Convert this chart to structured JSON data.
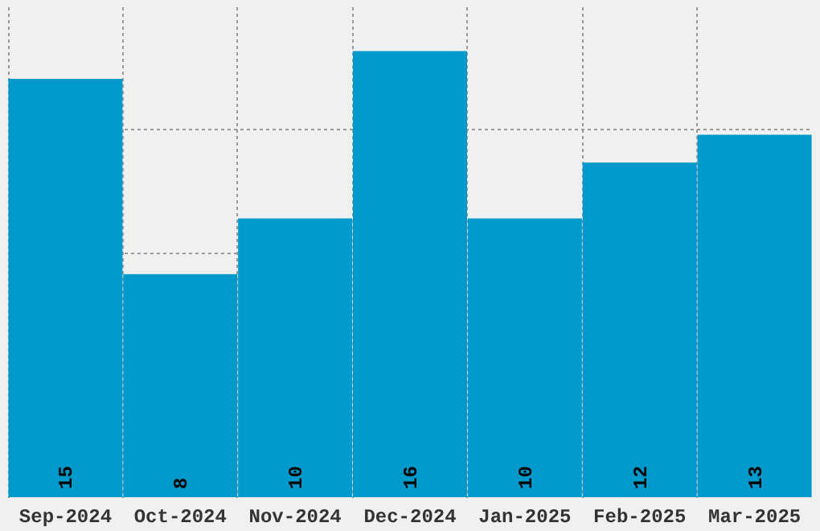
{
  "chart_data": {
    "type": "bar",
    "categories": [
      "Sep-2024",
      "Oct-2024",
      "Nov-2024",
      "Dec-2024",
      "Jan-2025",
      "Feb-2025",
      "Mar-2025"
    ],
    "values": [
      15,
      8,
      10,
      16,
      10,
      12,
      13
    ],
    "color": "#0099cc",
    "data_labels": true,
    "ylim": [
      0,
      17.6
    ],
    "yticks": [
      {
        "value": 4.4,
        "label": null
      },
      {
        "value": 8.8,
        "label": null
      },
      {
        "value": 13.2,
        "label": null
      }
    ],
    "tick_labels": "x",
    "grid": true
  }
}
